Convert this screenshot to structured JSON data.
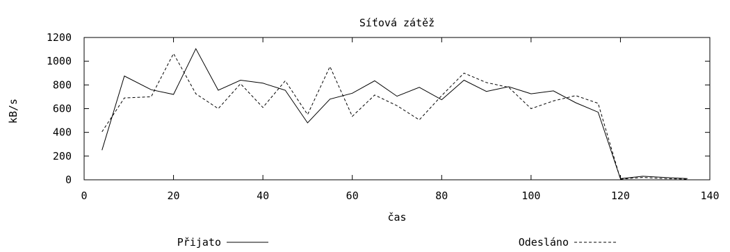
{
  "chart_data": {
    "type": "line",
    "title": "Síťová zátěž",
    "xlabel": "čas",
    "ylabel": "kB/s",
    "xlim": [
      0,
      140
    ],
    "ylim": [
      0,
      1200
    ],
    "xticks": [
      0,
      20,
      40,
      60,
      80,
      100,
      120,
      140
    ],
    "yticks": [
      0,
      200,
      400,
      600,
      800,
      1000,
      1200
    ],
    "grid": false,
    "legend_position": "bottom",
    "x": [
      4,
      9,
      15,
      20,
      25,
      30,
      35,
      40,
      45,
      50,
      55,
      60,
      65,
      70,
      75,
      80,
      85,
      90,
      95,
      100,
      105,
      110,
      115,
      120,
      125,
      130,
      135
    ],
    "series": [
      {
        "name": "Přijato",
        "style": "solid",
        "values": [
          250,
          875,
          760,
          720,
          1105,
          755,
          840,
          815,
          755,
          480,
          680,
          730,
          835,
          705,
          780,
          675,
          840,
          745,
          785,
          725,
          750,
          650,
          570,
          10,
          30,
          20,
          10
        ]
      },
      {
        "name": "Odesláno",
        "style": "dashed",
        "values": [
          405,
          690,
          700,
          1065,
          725,
          600,
          810,
          610,
          835,
          550,
          955,
          535,
          715,
          625,
          505,
          710,
          900,
          820,
          780,
          600,
          665,
          710,
          645,
          5,
          20,
          10,
          5
        ]
      }
    ]
  }
}
